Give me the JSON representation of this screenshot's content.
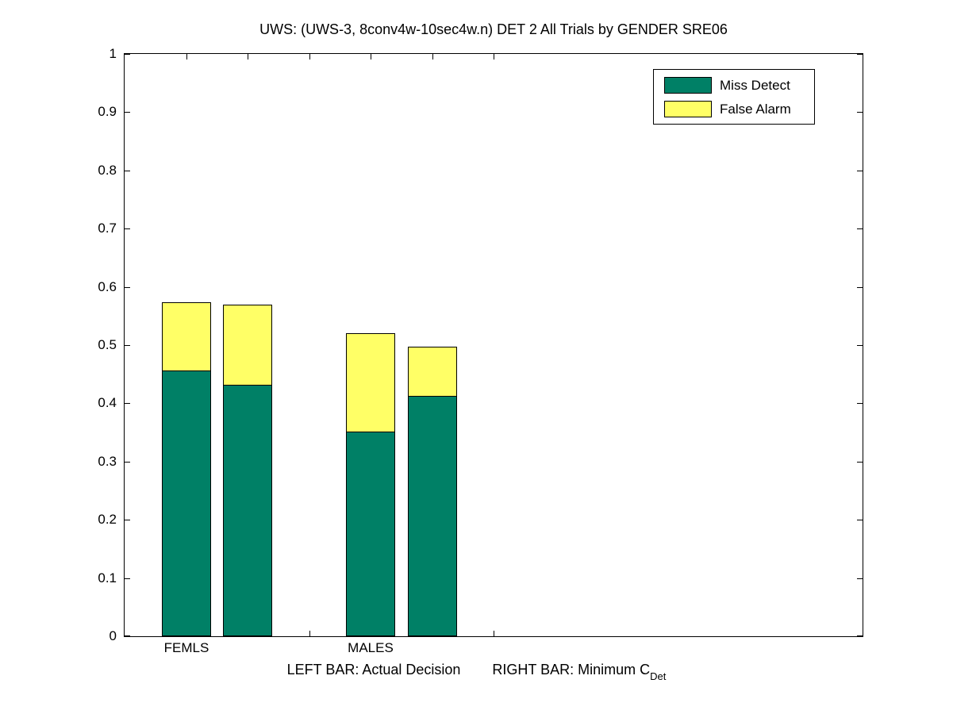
{
  "chart_data": {
    "type": "bar",
    "stacked": true,
    "title": "UWS: (UWS-3, 8conv4w-10sec4w.n) DET 2 All Trials by GENDER SRE06",
    "xlabel_left": "LEFT BAR: Actual Decision",
    "xlabel_right": "RIGHT BAR: Minimum C",
    "xlabel_sub": "Det",
    "ylabel": "",
    "xlim": [
      0,
      12
    ],
    "ylim": [
      0,
      1
    ],
    "x": [
      1,
      2,
      4,
      5
    ],
    "bar_width": 0.8,
    "bar_descriptions": [
      "FEMLS: Actual Decision",
      "FEMLS: Minimum CDet",
      "MALES: Actual Decision",
      "MALES: Minimum CDet"
    ],
    "series": [
      {
        "name": "Miss Detect",
        "color": "#008066",
        "values": [
          0.457,
          0.432,
          0.351,
          0.413
        ]
      },
      {
        "name": "False Alarm",
        "color": "#FFFF66",
        "values": [
          0.117,
          0.138,
          0.17,
          0.084
        ]
      }
    ],
    "stack_totals": [
      0.574,
      0.57,
      0.521,
      0.497
    ],
    "categories": [
      {
        "label": "FEMLS",
        "x": 1
      },
      {
        "label": "MALES",
        "x": 4
      }
    ],
    "xticks": [
      1,
      2,
      3,
      4,
      5,
      6
    ],
    "yticks": [
      0,
      0.1,
      0.2,
      0.3,
      0.4,
      0.5,
      0.6,
      0.7,
      0.8,
      0.9,
      1
    ],
    "ytick_labels": [
      "0",
      "0.1",
      "0.2",
      "0.3",
      "0.4",
      "0.5",
      "0.6",
      "0.7",
      "0.8",
      "0.9",
      "1"
    ],
    "grid": false,
    "legend_position": "top-right",
    "axis_color": "#000000",
    "background": "#FFFFFF"
  }
}
